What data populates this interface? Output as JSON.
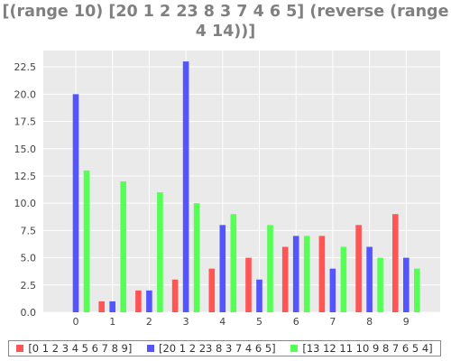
{
  "colors": {
    "series_0": "#ff5555",
    "series_1": "#5555ff",
    "series_2": "#55ff55",
    "plot_background": "#eaeaea",
    "text": "#808080"
  },
  "chart_data": {
    "type": "bar",
    "title": "[(range 10) [20 1 2 23 8 3 7 4 6 5] (reverse (range 4 14))]",
    "categories": [
      "0",
      "1",
      "2",
      "3",
      "4",
      "5",
      "6",
      "7",
      "8",
      "9"
    ],
    "series": [
      {
        "name": "[0 1 2 3 4 5 6 7 8 9]",
        "values": [
          0,
          1,
          2,
          3,
          4,
          5,
          6,
          7,
          8,
          9
        ]
      },
      {
        "name": "[20 1 2 23 8 3 7 4 6 5]",
        "values": [
          20,
          1,
          2,
          23,
          8,
          3,
          7,
          4,
          6,
          5
        ]
      },
      {
        "name": "[13 12 11 10 9 8 7 6 5 4]",
        "values": [
          13,
          12,
          11,
          10,
          9,
          8,
          7,
          6,
          5,
          4
        ]
      }
    ],
    "yticks": [
      "0.0",
      "2.5",
      "5.0",
      "7.5",
      "10.0",
      "12.5",
      "15.0",
      "17.5",
      "20.0",
      "22.5"
    ],
    "ylim": [
      0,
      24
    ],
    "xlabel": "",
    "ylabel": "",
    "grid": true,
    "legend": "bottom"
  }
}
